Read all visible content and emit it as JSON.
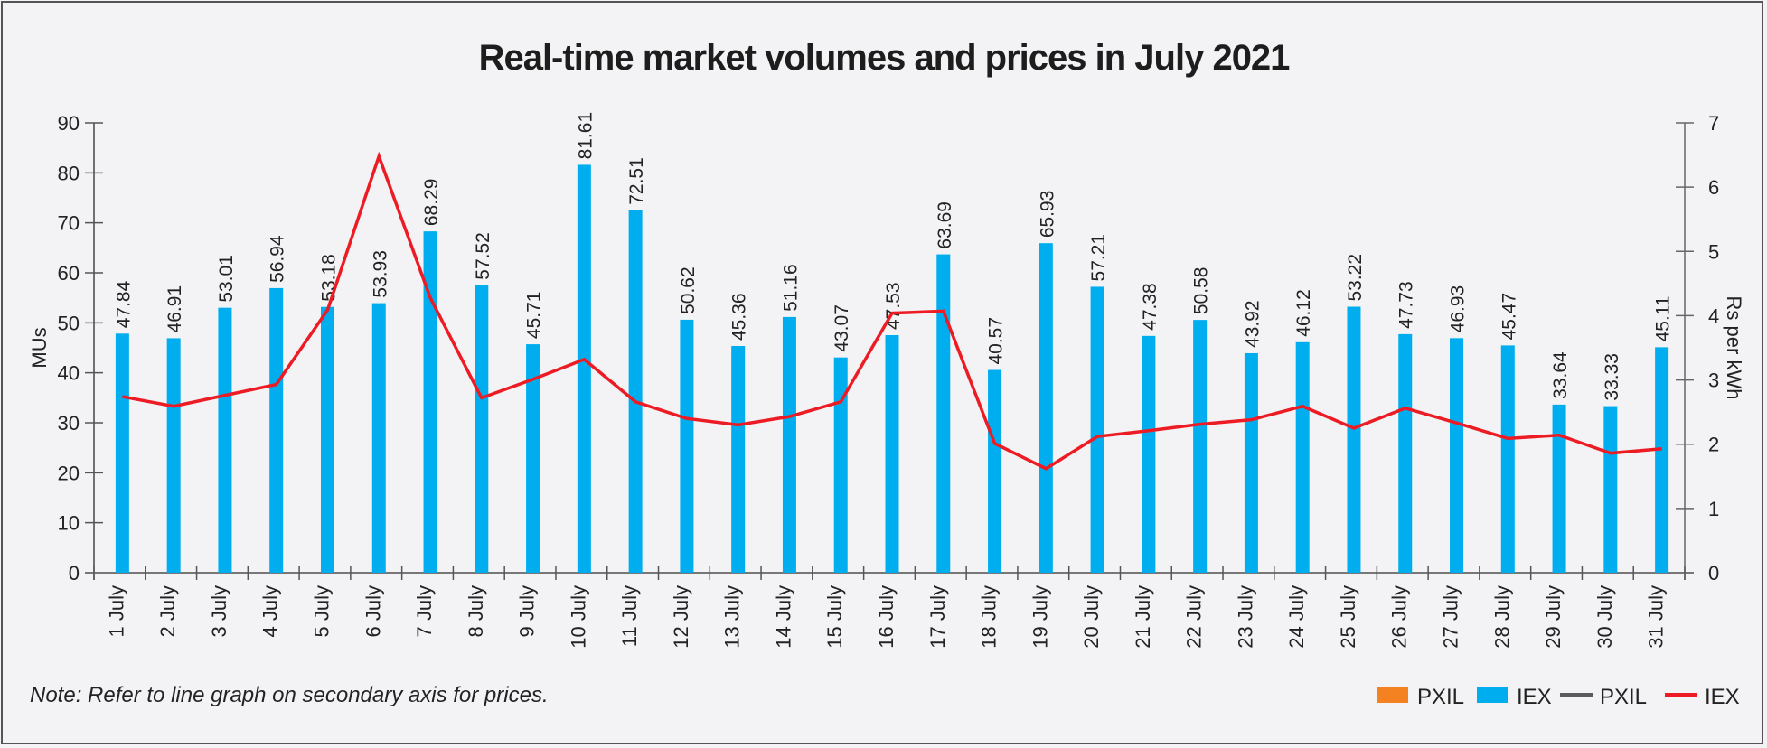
{
  "chart_data": {
    "type": "bar",
    "title": "Real-time market volumes and prices in July 2021",
    "xlabel": "",
    "ylabel": "MUs",
    "y2label": "Rs per kWh",
    "ylim": [
      0,
      90
    ],
    "y2lim": [
      0,
      7
    ],
    "yticks": [
      0,
      10,
      20,
      30,
      40,
      50,
      60,
      70,
      80,
      90
    ],
    "y2ticks": [
      0,
      1,
      2,
      3,
      4,
      5,
      6,
      7
    ],
    "grid": false,
    "legend_position": "bottom-right",
    "categories": [
      "1 July",
      "2 July",
      "3 July",
      "4 July",
      "5 July",
      "6 July",
      "7 July",
      "8 July",
      "9 July",
      "10 July",
      "11 July",
      "12 July",
      "13 July",
      "14 July",
      "15 July",
      "16 July",
      "17 July",
      "18 July",
      "19 July",
      "20 July",
      "21 July",
      "22 July",
      "23 July",
      "24 July",
      "25 July",
      "26 July",
      "27 July",
      "28 July",
      "29 July",
      "30 July",
      "31 July"
    ],
    "series": [
      {
        "name": "IEX",
        "type": "bar",
        "axis": "primary",
        "color": "#00aeef",
        "values": [
          47.84,
          46.91,
          53.01,
          56.94,
          53.18,
          53.93,
          68.29,
          57.52,
          45.71,
          81.61,
          72.51,
          50.62,
          45.36,
          51.16,
          43.07,
          47.53,
          63.69,
          40.57,
          65.93,
          57.21,
          47.38,
          50.58,
          43.92,
          46.12,
          53.22,
          47.73,
          46.93,
          45.47,
          33.64,
          33.33,
          45.11
        ],
        "labels": [
          "47.84",
          "46.91",
          "53.01",
          "56.94",
          "53.18",
          "53.93",
          "68.29",
          "57.52",
          "45.71",
          "81.61",
          "72.51",
          "50.62",
          "45.36",
          "51.16",
          "43.07",
          "47.53",
          "63.69",
          "40.57",
          "65.93",
          "57.21",
          "47.38",
          "50.58",
          "43.92",
          "46.12",
          "53.22",
          "47.73",
          "46.93",
          "45.47",
          "33.64",
          "33.33",
          "45.11"
        ]
      },
      {
        "name": "IEX",
        "type": "line",
        "axis": "secondary",
        "color": "#ed1c24",
        "values": [
          2.74,
          2.59,
          2.76,
          2.93,
          4.09,
          6.48,
          4.28,
          2.72,
          3.01,
          3.32,
          2.66,
          2.4,
          2.3,
          2.43,
          2.66,
          4.04,
          4.07,
          2.01,
          1.62,
          2.12,
          2.21,
          2.31,
          2.38,
          2.59,
          2.25,
          2.56,
          2.33,
          2.09,
          2.14,
          1.86,
          1.93
        ]
      }
    ],
    "legend": [
      {
        "label": "PXIL",
        "kind": "bar",
        "color": "#f58220"
      },
      {
        "label": "IEX",
        "kind": "bar",
        "color": "#00aeef"
      },
      {
        "label": "PXIL",
        "kind": "line",
        "color": "#5a5a5a"
      },
      {
        "label": "IEX",
        "kind": "line",
        "color": "#ed1c24"
      }
    ],
    "note": "Note: Refer to line graph on secondary axis for prices."
  }
}
